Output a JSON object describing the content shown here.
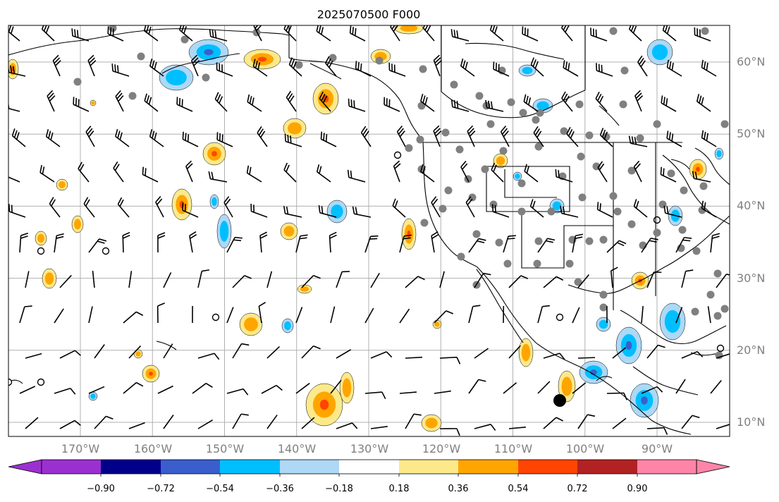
{
  "title": "2025070500 F000",
  "map": {
    "lat_labels": [
      "60°N",
      "50°N",
      "40°N",
      "30°N",
      "20°N",
      "10°N"
    ],
    "lon_labels": [
      "170°W",
      "160°W",
      "150°W",
      "140°W",
      "130°W",
      "120°W",
      "110°W",
      "100°W",
      "90°W"
    ]
  },
  "colorbar": {
    "ticks": [
      "−0.90",
      "−0.72",
      "−0.54",
      "−0.36",
      "−0.18",
      "0.18",
      "0.36",
      "0.54",
      "0.72",
      "0.90"
    ],
    "colors": [
      "#9b30d0",
      "#00008b",
      "#3a5fcd",
      "#00bfff",
      "#add8f6",
      "#ffffff",
      "#fce98a",
      "#ffa500",
      "#ff4500",
      "#b22222",
      "#ff85a8"
    ]
  },
  "palette": {
    "positive": [
      "#fce98a",
      "#ffa500",
      "#ff4500"
    ],
    "negative": [
      "#add8f6",
      "#00bfff",
      "#3a5fcd"
    ],
    "station_dot": "#808080",
    "grid": "#b0b0b0"
  }
}
